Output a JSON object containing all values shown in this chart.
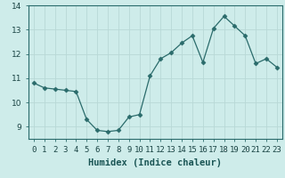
{
  "x": [
    0,
    1,
    2,
    3,
    4,
    5,
    6,
    7,
    8,
    9,
    10,
    11,
    12,
    13,
    14,
    15,
    16,
    17,
    18,
    19,
    20,
    21,
    22,
    23
  ],
  "y": [
    10.8,
    10.6,
    10.55,
    10.5,
    10.45,
    9.3,
    8.85,
    8.8,
    8.85,
    9.4,
    9.5,
    11.1,
    11.8,
    12.05,
    12.45,
    12.75,
    11.65,
    13.05,
    13.55,
    13.15,
    12.75,
    11.6,
    11.8,
    11.45
  ],
  "xlabel": "Humidex (Indice chaleur)",
  "ylim": [
    8.5,
    14.0
  ],
  "xlim": [
    -0.5,
    23.5
  ],
  "yticks": [
    9,
    10,
    11,
    12,
    13,
    14
  ],
  "xtick_labels": [
    "0",
    "1",
    "2",
    "3",
    "4",
    "5",
    "6",
    "7",
    "8",
    "9",
    "10",
    "11",
    "12",
    "13",
    "14",
    "15",
    "16",
    "17",
    "18",
    "19",
    "20",
    "21",
    "22",
    "23"
  ],
  "line_color": "#2a6b6b",
  "marker": "D",
  "marker_size": 2.5,
  "bg_color": "#ceecea",
  "grid_color": "#b8d8d6",
  "xlabel_fontsize": 7.5,
  "tick_fontsize": 6.5,
  "ylabel_fontsize": 6.5
}
